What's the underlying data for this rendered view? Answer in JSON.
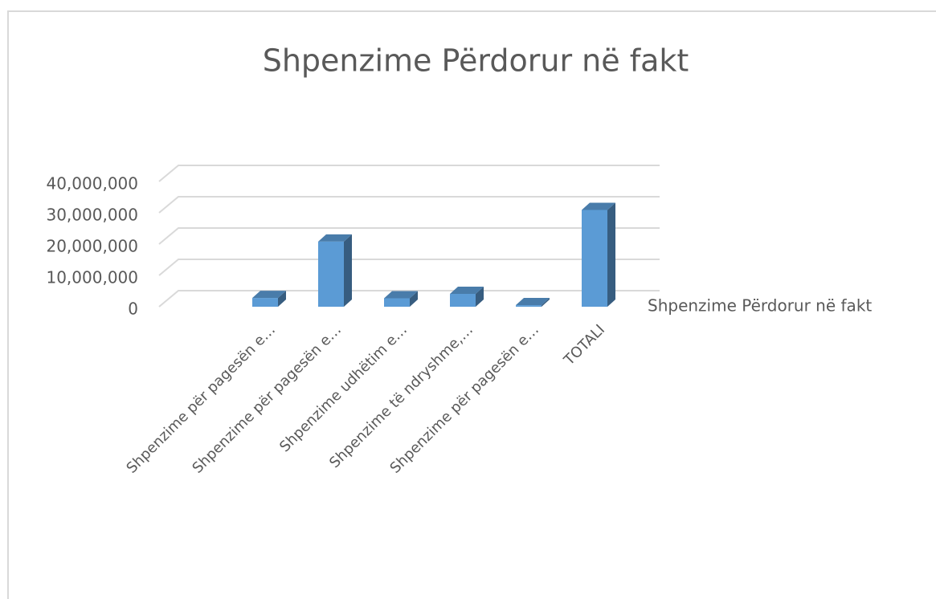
{
  "chart_data": {
    "type": "bar3d",
    "title": "Shpenzime Përdorur në fakt",
    "categories": [
      "Shpenzime për pagesën e…",
      "Shpenzime për pagesën e…",
      "Shpenzime udhëtim e…",
      "Shpenzime të ndryshme,…",
      "Shpenzime për pagesën e…",
      "TOTALI"
    ],
    "series": [
      {
        "name": "Shpenzime Përdorur në fakt",
        "color": "#5b9bd5",
        "values": [
          2800000,
          20800000,
          2700000,
          4100000,
          500000,
          30900000
        ]
      }
    ],
    "ylim": [
      0,
      40000000
    ],
    "yticks": [
      0,
      {
        "value": 10000000,
        "label": "10,000,000"
      },
      {
        "value": 20000000,
        "label": "20,000,000"
      },
      {
        "value": 30000000,
        "label": "30,000,000"
      },
      {
        "value": 40000000,
        "label": "40,000,000"
      }
    ],
    "grid": true,
    "legend": "right"
  }
}
